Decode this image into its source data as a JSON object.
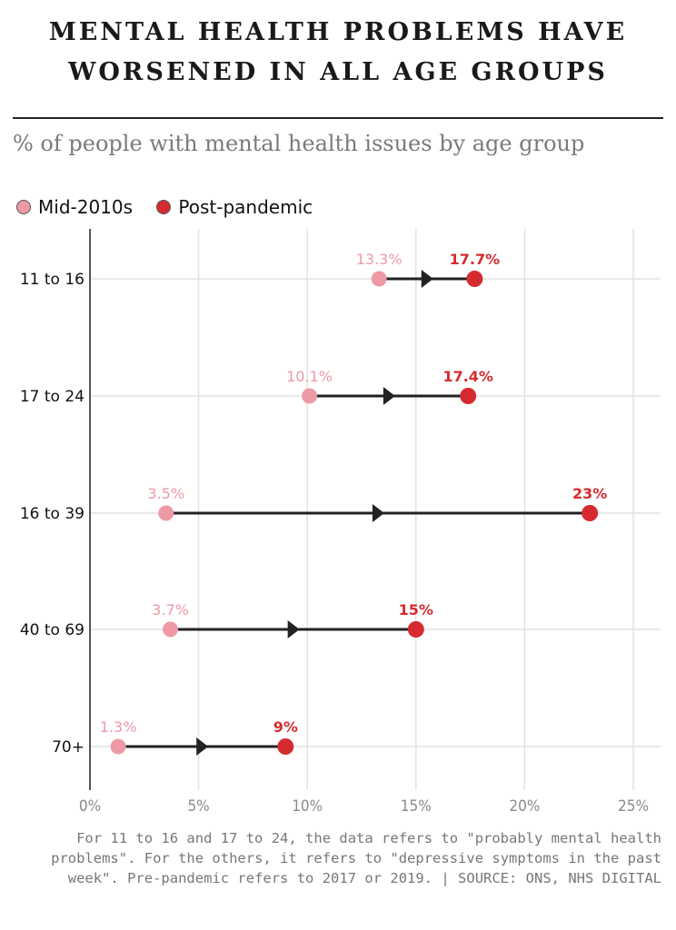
{
  "title_line1": "MENTAL HEALTH PROBLEMS HAVE",
  "title_line2": "WORSENED IN ALL AGE GROUPS",
  "subtitle": "% of people with mental health issues by age group",
  "footnote": "For 11 to 16 and 17 to 24, the data refers to \"probably mental health problems\". For the others, it refers to \"depressive symptoms in the past week\". Pre-pandemic refers to 2017 or 2019. | SOURCE: ONS, NHS DIGITAL",
  "colors": {
    "mid": "#ee9aa6",
    "post": "#d52b30",
    "line": "#222222"
  },
  "chart_data": {
    "type": "scatter",
    "categories": [
      "11 to 16",
      "17 to 24",
      "16 to 39",
      "40 to 69",
      "70+"
    ],
    "series": [
      {
        "name": "Mid-2010s",
        "values": [
          13.3,
          10.1,
          3.5,
          3.7,
          1.3
        ],
        "labels": [
          "13.3%",
          "10.1%",
          "3.5%",
          "3.7%",
          "1.3%"
        ]
      },
      {
        "name": "Post-pandemic",
        "values": [
          17.7,
          17.4,
          23,
          15,
          9
        ],
        "labels": [
          "17.7%",
          "17.4%",
          "23%",
          "15%",
          "9%"
        ]
      }
    ],
    "xlim": [
      0,
      25
    ],
    "xticks": [
      0,
      5,
      10,
      15,
      20,
      25
    ],
    "xtick_labels": [
      "0%",
      "5%",
      "10%",
      "15%",
      "20%",
      "25%"
    ],
    "grid": true,
    "legend_position": "top-left"
  }
}
